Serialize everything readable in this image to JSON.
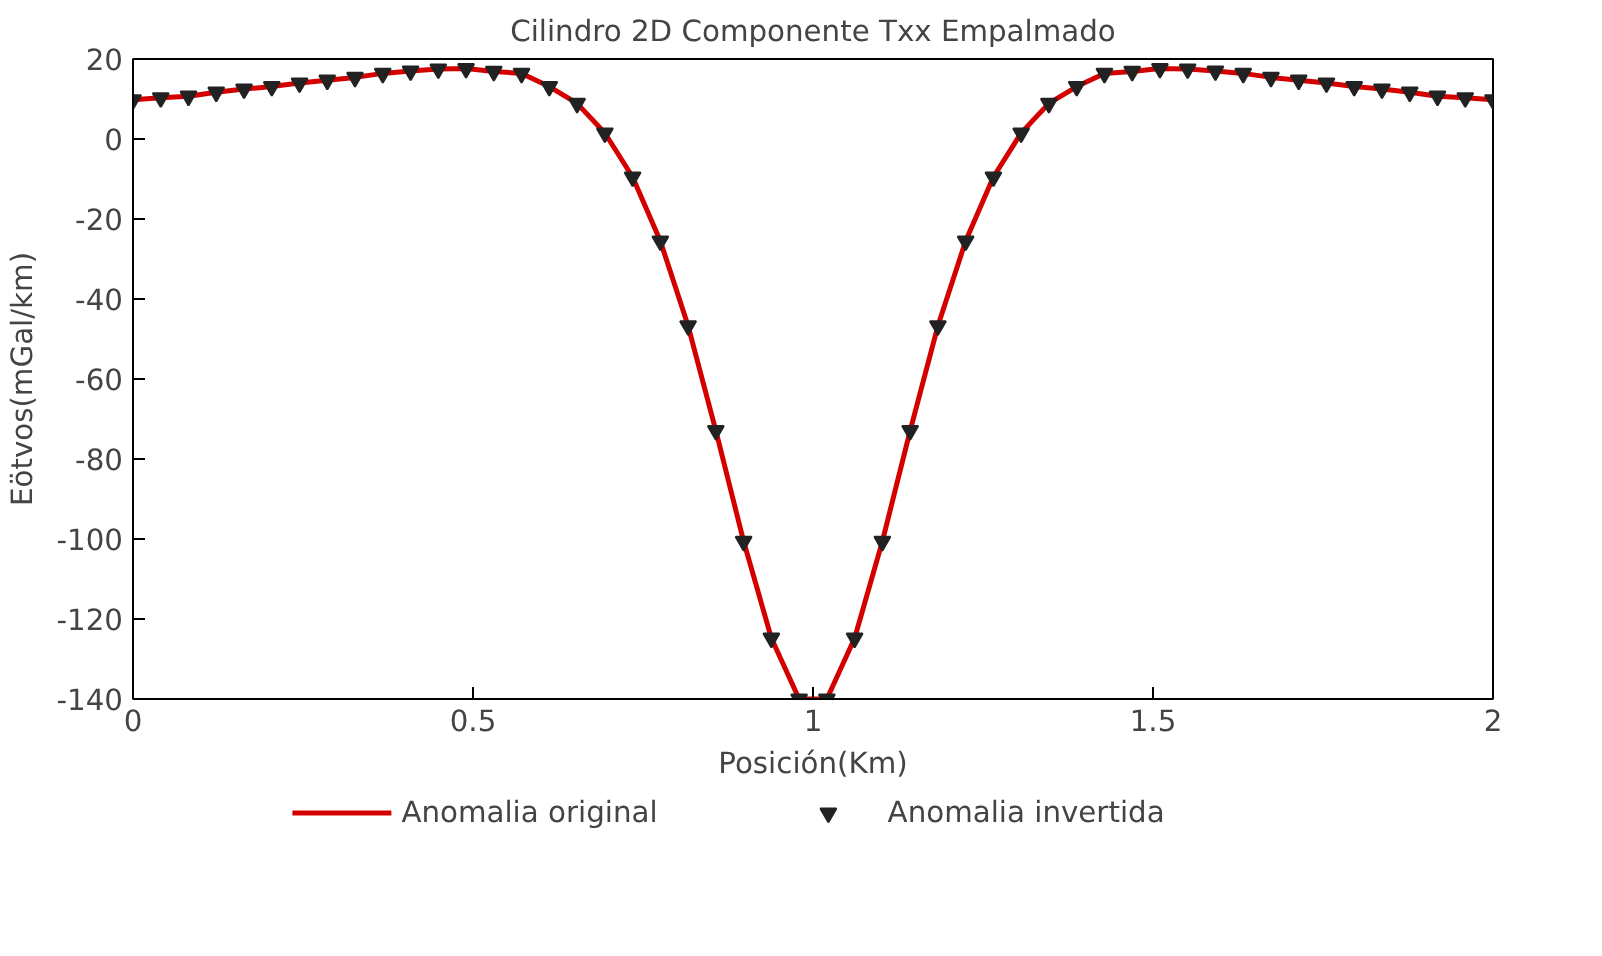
{
  "chart_data": {
    "type": "line",
    "title": "Cilindro 2D Componente Txx Empalmado",
    "xlabel": "Posición(Km)",
    "ylabel": "Eötvos(mGal/km)",
    "x": [
      0,
      0.0408,
      0.0816,
      0.1224,
      0.1633,
      0.2041,
      0.2449,
      0.2857,
      0.3265,
      0.3673,
      0.4082,
      0.449,
      0.4898,
      0.5306,
      0.5714,
      0.6122,
      0.6531,
      0.6939,
      0.7347,
      0.7755,
      0.8163,
      0.8571,
      0.898,
      0.9388,
      0.9796,
      1.0204,
      1.0612,
      1.102,
      1.1429,
      1.1837,
      1.2245,
      1.2653,
      1.3061,
      1.3469,
      1.3878,
      1.4286,
      1.4694,
      1.5102,
      1.551,
      1.5918,
      1.6327,
      1.6735,
      1.7143,
      1.7551,
      1.7959,
      1.8367,
      1.8776,
      1.9184,
      1.9592,
      2
    ],
    "series": [
      {
        "name": "Anomalia original",
        "type": "line",
        "color": "#d40000",
        "marker": "none",
        "values": [
          9.8,
          10.3,
          10.7,
          11.7,
          12.5,
          13.1,
          14.0,
          14.7,
          15.4,
          16.4,
          17.0,
          17.5,
          17.6,
          16.9,
          16.4,
          13.1,
          8.9,
          1.5,
          -9.5,
          -25.5,
          -46.7,
          -72.9,
          -100.6,
          -124.8,
          -140,
          -140,
          -124.8,
          -100.6,
          -72.9,
          -46.7,
          -25.5,
          -9.5,
          1.5,
          8.9,
          13.1,
          16.4,
          16.9,
          17.6,
          17.5,
          17.0,
          16.4,
          15.4,
          14.7,
          14.0,
          13.1,
          12.5,
          11.7,
          10.7,
          10.3,
          9.8
        ]
      },
      {
        "name": "Anomalia invertida",
        "type": "scatter",
        "color": "#222222",
        "marker": "triangle",
        "values": [
          9.8,
          10.3,
          10.7,
          11.7,
          12.5,
          13.1,
          14.0,
          14.7,
          15.4,
          16.4,
          17.0,
          17.5,
          17.6,
          16.9,
          16.4,
          13.1,
          8.9,
          1.5,
          -9.5,
          -25.5,
          -46.7,
          -72.9,
          -100.6,
          -124.8,
          -140,
          -140,
          -124.8,
          -100.6,
          -72.9,
          -46.7,
          -25.5,
          -9.5,
          1.5,
          8.9,
          13.1,
          16.4,
          16.9,
          17.6,
          17.5,
          17.0,
          16.4,
          15.4,
          14.7,
          14.0,
          13.1,
          12.5,
          11.7,
          10.7,
          10.3,
          9.8
        ]
      }
    ],
    "xlim": [
      0,
      2
    ],
    "ylim": [
      -140,
      20
    ],
    "xticks": [
      0,
      0.5,
      1,
      1.5,
      2
    ],
    "yticks": [
      -140,
      -120,
      -100,
      -80,
      -60,
      -40,
      -20,
      0,
      20
    ],
    "grid": false,
    "legend": "bottom"
  }
}
